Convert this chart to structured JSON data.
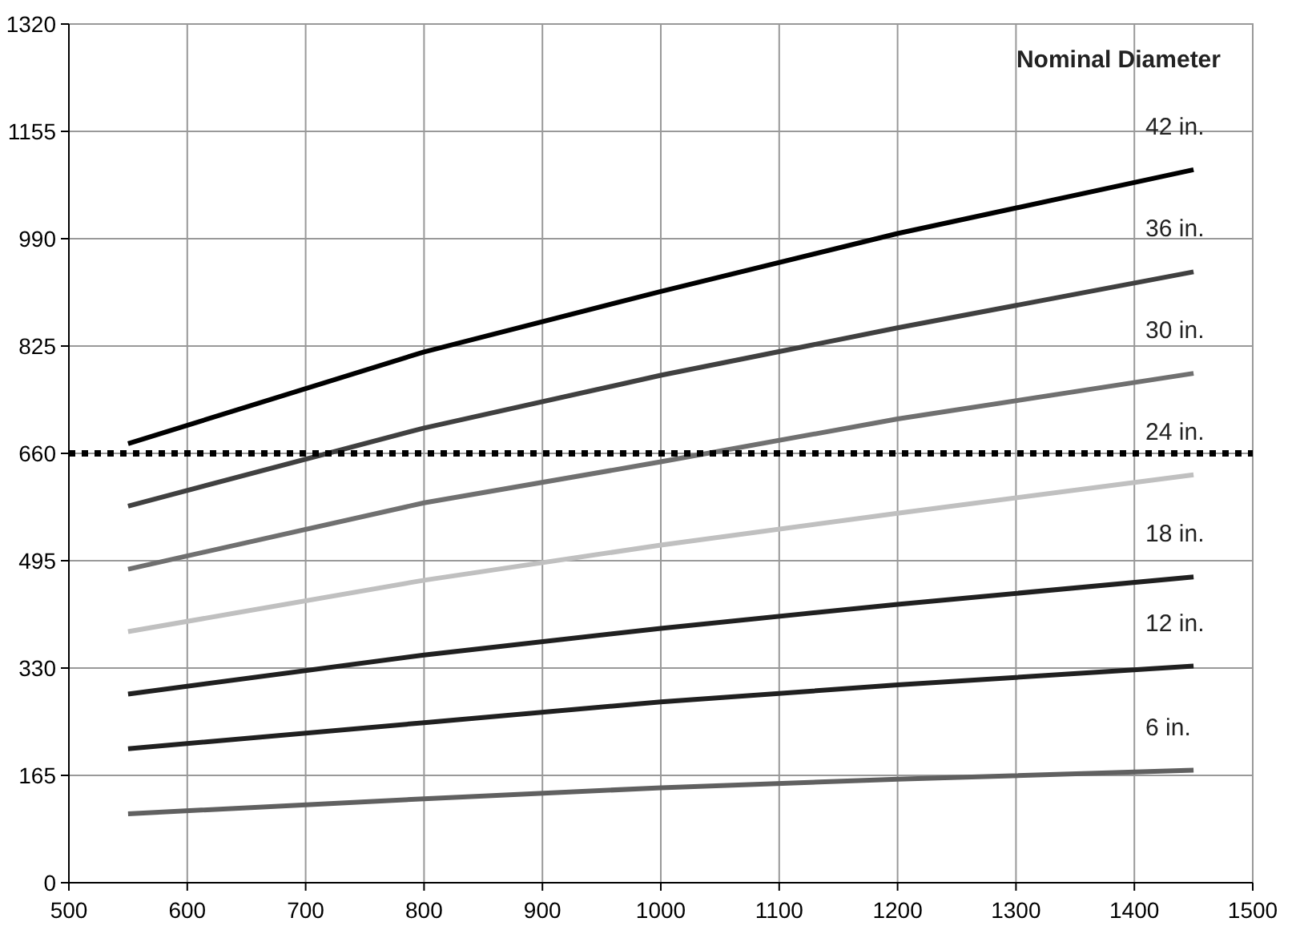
{
  "chart_data": {
    "type": "line",
    "legend_title": "Nominal Diameter",
    "x": [
      550,
      800,
      1000,
      1200,
      1450
    ],
    "series": [
      {
        "name": "42 in.",
        "color": "#000000",
        "values": [
          675,
          816,
          909,
          998,
          1096
        ]
      },
      {
        "name": "36 in.",
        "color": "#404040",
        "values": [
          579,
          699,
          780,
          853,
          939
        ]
      },
      {
        "name": "30 in.",
        "color": "#707070",
        "values": [
          482,
          584,
          647,
          713,
          783
        ]
      },
      {
        "name": "24 in.",
        "color": "#c0c0c0",
        "values": [
          386,
          465,
          519,
          568,
          627
        ]
      },
      {
        "name": "18 in.",
        "color": "#202020",
        "values": [
          290,
          350,
          391,
          428,
          470
        ]
      },
      {
        "name": "12 in.",
        "color": "#202020",
        "values": [
          206,
          246,
          278,
          304,
          333
        ]
      },
      {
        "name": "6 in.",
        "color": "#606060",
        "values": [
          106,
          129,
          146,
          159,
          173
        ]
      }
    ],
    "xlim": [
      500,
      1500
    ],
    "xticks": [
      500,
      600,
      700,
      800,
      900,
      1000,
      1100,
      1200,
      1300,
      1400,
      1500
    ],
    "ylim": [
      0,
      1320
    ],
    "yticks": [
      0,
      165,
      330,
      495,
      660,
      825,
      990,
      1155,
      1320
    ],
    "ref_lines": [
      {
        "axis": "y",
        "value": 660,
        "color": "#000000",
        "line_style": "dotted"
      }
    ],
    "grid": true,
    "legend": false,
    "marker": "none",
    "line_style": "solid"
  }
}
